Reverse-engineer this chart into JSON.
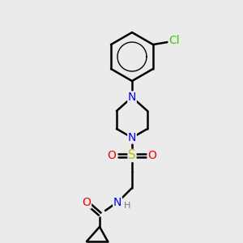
{
  "bg_color": "#ebebeb",
  "bond_color": "#000000",
  "bond_width": 1.8,
  "atom_colors": {
    "N": "#0000ee",
    "O": "#ee0000",
    "S": "#bbbb00",
    "Cl": "#33cc00",
    "H": "#777777"
  },
  "font_size": 10,
  "font_size_small": 8,
  "font_size_S": 11
}
